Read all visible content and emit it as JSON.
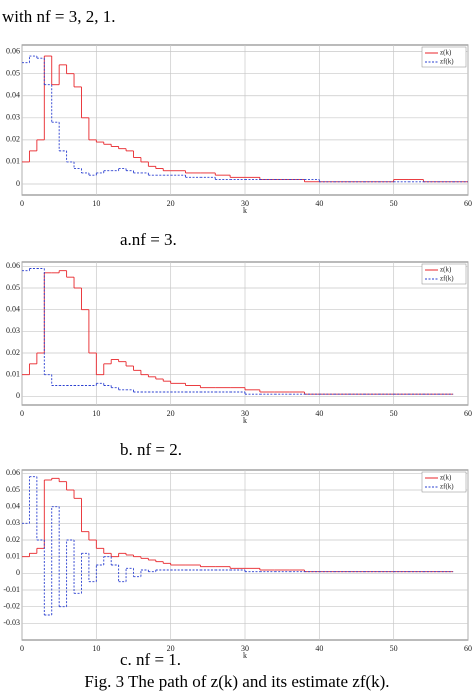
{
  "header_text": "with nf = 3, 2, 1.",
  "chart_data": [
    {
      "type": "step",
      "caption": "a.nf = 3.",
      "x_label": "k",
      "x": [
        0,
        1,
        2,
        3,
        4,
        5,
        6,
        7,
        8,
        9,
        10,
        11,
        12,
        13,
        14,
        15,
        16,
        17,
        18,
        19,
        20,
        22,
        24,
        26,
        28,
        30,
        32,
        34,
        36,
        38,
        40,
        42,
        44,
        46,
        48,
        50,
        52,
        54,
        56,
        58
      ],
      "xlim": [
        0,
        60
      ],
      "xticks": [
        0,
        10,
        20,
        30,
        40,
        50,
        60
      ],
      "ylim": [
        -0.005,
        0.063
      ],
      "yticks": [
        0,
        0.01,
        0.02,
        0.03,
        0.04,
        0.05,
        0.06
      ],
      "grid": true,
      "legend": "top-right",
      "series": [
        {
          "name": "z(k)",
          "color": "#e8262b",
          "values": [
            0.01,
            0.015,
            0.02,
            0.058,
            0.045,
            0.054,
            0.05,
            0.044,
            0.03,
            0.02,
            0.019,
            0.018,
            0.017,
            0.016,
            0.015,
            0.012,
            0.01,
            0.008,
            0.007,
            0.006,
            0.006,
            0.005,
            0.005,
            0.004,
            0.003,
            0.003,
            0.002,
            0.002,
            0.002,
            0.001,
            0.001,
            0.001,
            0.001,
            0.001,
            0.001,
            0.002,
            0.002,
            0.001,
            0.001,
            0.001
          ]
        },
        {
          "name": "zf(k)",
          "color": "#2a3fd0",
          "values": [
            0.055,
            0.058,
            0.057,
            0.045,
            0.028,
            0.015,
            0.01,
            0.007,
            0.005,
            0.004,
            0.005,
            0.006,
            0.006,
            0.007,
            0.006,
            0.005,
            0.005,
            0.004,
            0.004,
            0.004,
            0.004,
            0.003,
            0.003,
            0.002,
            0.002,
            0.002,
            0.002,
            0.002,
            0.002,
            0.002,
            0.001,
            0.001,
            0.001,
            0.001,
            0.001,
            0.001,
            0.001,
            0.001,
            0.001,
            0.001
          ]
        }
      ]
    },
    {
      "type": "step",
      "caption": "b. nf = 2.",
      "x_label": "k",
      "x": [
        0,
        1,
        2,
        3,
        4,
        5,
        6,
        7,
        8,
        9,
        10,
        11,
        12,
        13,
        14,
        15,
        16,
        17,
        18,
        19,
        20,
        22,
        24,
        26,
        28,
        30,
        32,
        34,
        36,
        38,
        40,
        42,
        44,
        46,
        48,
        50,
        52,
        54,
        56
      ],
      "xlim": [
        0,
        60
      ],
      "xticks": [
        0,
        10,
        20,
        30,
        40,
        50,
        60
      ],
      "ylim": [
        -0.004,
        0.062
      ],
      "yticks": [
        0,
        0.01,
        0.02,
        0.03,
        0.04,
        0.05,
        0.06
      ],
      "grid": true,
      "legend": "top-right",
      "series": [
        {
          "name": "z(k)",
          "color": "#e8262b",
          "values": [
            0.01,
            0.015,
            0.02,
            0.057,
            0.057,
            0.058,
            0.055,
            0.05,
            0.04,
            0.02,
            0.01,
            0.015,
            0.017,
            0.016,
            0.014,
            0.012,
            0.01,
            0.009,
            0.008,
            0.007,
            0.006,
            0.005,
            0.004,
            0.004,
            0.004,
            0.003,
            0.002,
            0.002,
            0.002,
            0.001,
            0.001,
            0.001,
            0.001,
            0.001,
            0.001,
            0.001,
            0.001,
            0.001,
            0.001
          ]
        },
        {
          "name": "zf(k)",
          "color": "#2a3fd0",
          "values": [
            0.058,
            0.059,
            0.059,
            0.01,
            0.005,
            0.005,
            0.005,
            0.005,
            0.005,
            0.005,
            0.006,
            0.005,
            0.004,
            0.003,
            0.003,
            0.002,
            0.002,
            0.002,
            0.002,
            0.002,
            0.002,
            0.002,
            0.002,
            0.002,
            0.002,
            0.001,
            0.001,
            0.001,
            0.001,
            0.001,
            0.001,
            0.001,
            0.001,
            0.001,
            0.001,
            0.001,
            0.001,
            0.001,
            0.001
          ]
        }
      ]
    },
    {
      "type": "step",
      "caption": "c. nf = 1.",
      "x_label": "k",
      "x": [
        0,
        1,
        2,
        3,
        4,
        5,
        6,
        7,
        8,
        9,
        10,
        11,
        12,
        13,
        14,
        15,
        16,
        17,
        18,
        19,
        20,
        22,
        24,
        26,
        28,
        30,
        32,
        34,
        36,
        38,
        40,
        42,
        44,
        46,
        48,
        50,
        52,
        54,
        56
      ],
      "xlim": [
        0,
        60
      ],
      "xticks": [
        0,
        10,
        20,
        30,
        40,
        50,
        60
      ],
      "ylim": [
        -0.04,
        0.062
      ],
      "yticks": [
        -0.03,
        -0.02,
        -0.01,
        0,
        0.01,
        0.02,
        0.03,
        0.04,
        0.05,
        0.06
      ],
      "grid": true,
      "legend": "top-right",
      "series": [
        {
          "name": "z(k)",
          "color": "#e8262b",
          "values": [
            0.01,
            0.012,
            0.015,
            0.056,
            0.057,
            0.055,
            0.05,
            0.045,
            0.025,
            0.02,
            0.015,
            0.012,
            0.01,
            0.012,
            0.011,
            0.01,
            0.009,
            0.008,
            0.007,
            0.006,
            0.005,
            0.005,
            0.004,
            0.004,
            0.003,
            0.003,
            0.002,
            0.002,
            0.002,
            0.001,
            0.001,
            0.001,
            0.001,
            0.001,
            0.001,
            0.001,
            0.001,
            0.001,
            0.001
          ]
        },
        {
          "name": "zf(k)",
          "color": "#2a3fd0",
          "values": [
            0.03,
            0.058,
            0.02,
            -0.025,
            0.04,
            -0.02,
            0.02,
            -0.012,
            0.012,
            -0.005,
            0.005,
            0.01,
            0.005,
            -0.005,
            0.003,
            -0.002,
            0.002,
            0.001,
            0.002,
            0.002,
            0.002,
            0.002,
            0.002,
            0.002,
            0.002,
            0.001,
            0.001,
            0.001,
            0.001,
            0.001,
            0.001,
            0.001,
            0.001,
            0.001,
            0.001,
            0.001,
            0.001,
            0.001,
            0.001
          ]
        }
      ]
    }
  ],
  "figure_caption": "Fig. 3 The path of z(k) and its estimate zf(k)."
}
